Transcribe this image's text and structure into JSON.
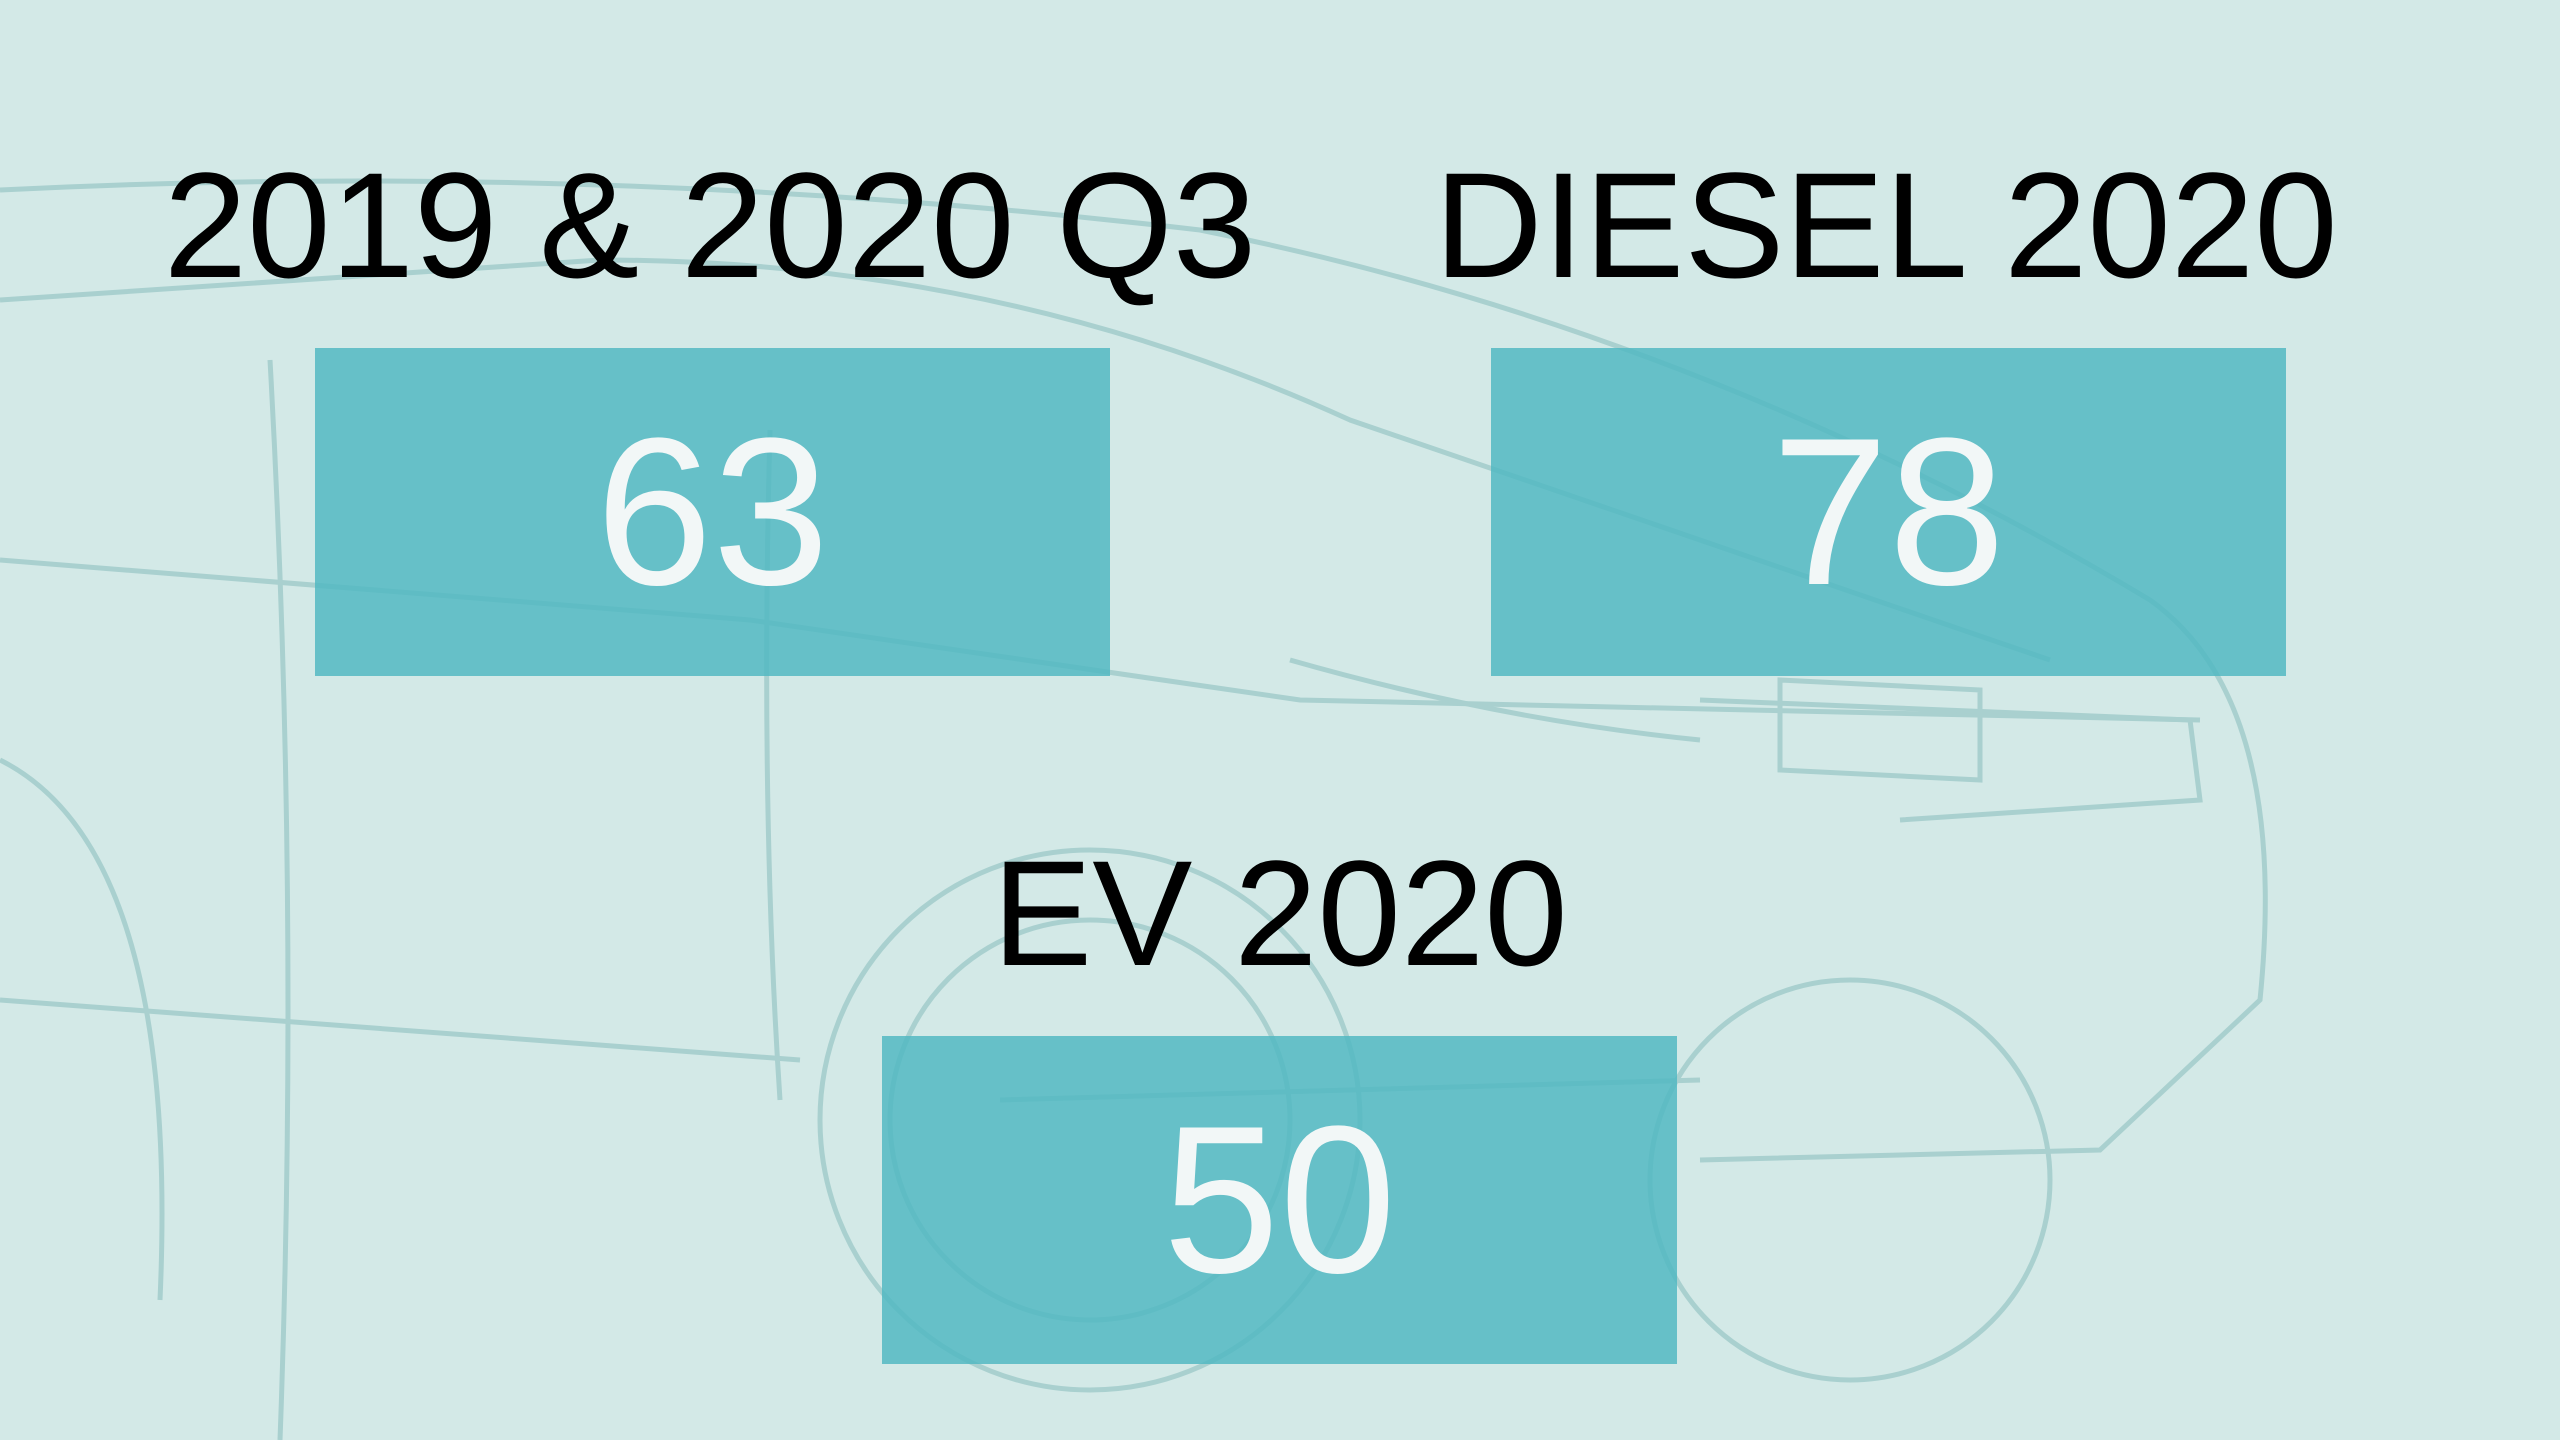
{
  "panels": [
    {
      "label": "2019 & 2020 Q3",
      "value": 63
    },
    {
      "label": "DIESEL 2020",
      "value": 78
    },
    {
      "label": "EV 2020",
      "value": 50
    }
  ]
}
